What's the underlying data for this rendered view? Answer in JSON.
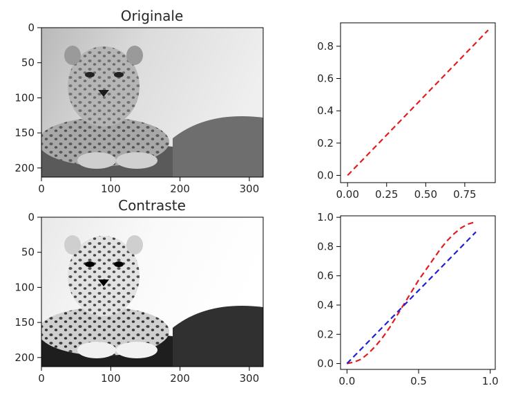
{
  "chart_data": [
    {
      "type": "image",
      "title": "Originale",
      "image_description": "grayscale photo of a leopard lying on a rock, original contrast",
      "image_size": [
        320,
        213
      ],
      "xticks": [
        0,
        100,
        200,
        300
      ],
      "yticks": [
        0,
        50,
        100,
        150,
        200
      ],
      "xlim": [
        0,
        320
      ],
      "ylim": [
        213,
        0
      ]
    },
    {
      "type": "line",
      "title": "",
      "xlim": [
        -0.045,
        0.945
      ],
      "ylim": [
        -0.045,
        0.945
      ],
      "xticks": [
        0.0,
        0.25,
        0.5,
        0.75
      ],
      "xtick_labels": [
        "0.00",
        "0.25",
        "0.50",
        "0.75"
      ],
      "yticks": [
        0.0,
        0.2,
        0.4,
        0.6,
        0.8
      ],
      "ytick_labels": [
        "0.0",
        "0.2",
        "0.4",
        "0.6",
        "0.8"
      ],
      "series": [
        {
          "color": "#e41a1c",
          "style": "dashed",
          "x": [
            0.0,
            0.9
          ],
          "y": [
            0.0,
            0.9
          ]
        }
      ]
    },
    {
      "type": "image",
      "title": "Contraste",
      "image_description": "same leopard photo with increased contrast",
      "image_size": [
        320,
        213
      ],
      "xticks": [
        0,
        100,
        200,
        300
      ],
      "yticks": [
        0,
        50,
        100,
        150,
        200
      ],
      "xlim": [
        0,
        320
      ],
      "ylim": [
        213,
        0
      ]
    },
    {
      "type": "line",
      "title": "",
      "xlim": [
        -0.045,
        1.035
      ],
      "ylim": [
        -0.04,
        1.01
      ],
      "xticks": [
        0.0,
        0.5,
        1.0
      ],
      "xtick_labels": [
        "0.0",
        "0.5",
        "1.0"
      ],
      "yticks": [
        0.0,
        0.2,
        0.4,
        0.6,
        0.8,
        1.0
      ],
      "ytick_labels": [
        "0.0",
        "0.2",
        "0.4",
        "0.6",
        "0.8",
        "1.0"
      ],
      "series": [
        {
          "color": "#e41a1c",
          "style": "dashed",
          "x": [
            0.0,
            0.05,
            0.1,
            0.15,
            0.2,
            0.25,
            0.3,
            0.35,
            0.4,
            0.45,
            0.5,
            0.55,
            0.6,
            0.65,
            0.7,
            0.75,
            0.8,
            0.85,
            0.9
          ],
          "y": [
            0.0,
            0.01,
            0.03,
            0.07,
            0.12,
            0.18,
            0.25,
            0.33,
            0.41,
            0.49,
            0.57,
            0.64,
            0.71,
            0.78,
            0.84,
            0.89,
            0.93,
            0.955,
            0.97
          ]
        },
        {
          "color": "#1f1fd6",
          "style": "dashed",
          "x": [
            0.0,
            0.9
          ],
          "y": [
            0.0,
            0.9
          ]
        }
      ]
    }
  ]
}
